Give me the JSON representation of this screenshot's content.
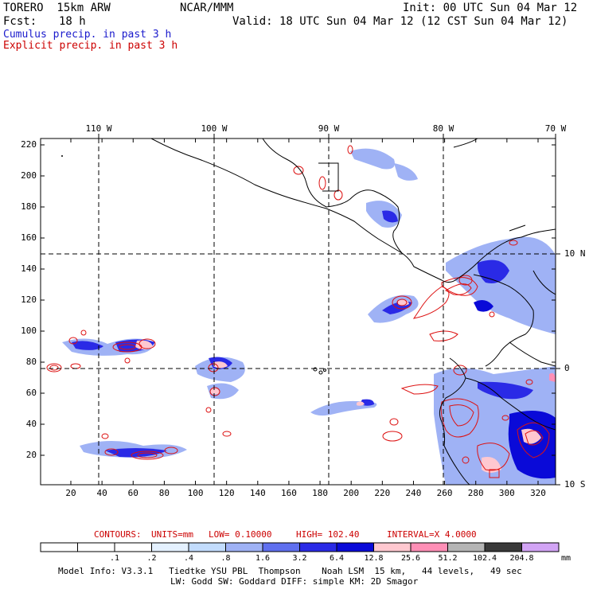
{
  "header": {
    "model": "TORERO  15km ARW",
    "org": "NCAR/MMM",
    "init": "Init: 00 UTC Sun 04 Mar 12",
    "fcst_label": "Fcst:",
    "fcst_value": "18 h",
    "valid": "Valid: 18 UTC Sun 04 Mar 12 (12 CST Sun 04 Mar 12)"
  },
  "legend": {
    "cumulus": "Cumulus precip. in past 3 h",
    "explicit": "Explicit precip. in past 3 h",
    "cumulus_color": "#1a1acc",
    "explicit_color": "#cc0000"
  },
  "axes": {
    "top_lon_labels": [
      "110 W",
      "100 W",
      "90 W",
      "80 W",
      "70 W"
    ],
    "right_lat_labels": [
      "10 N",
      "0",
      "10 S"
    ],
    "y_ticks": [
      "220",
      "200",
      "180",
      "160",
      "140",
      "120",
      "100",
      "80",
      "60",
      "40",
      "20"
    ],
    "x_ticks": [
      "20",
      "40",
      "60",
      "80",
      "100",
      "120",
      "140",
      "160",
      "180",
      "200",
      "220",
      "240",
      "260",
      "280",
      "300",
      "320"
    ]
  },
  "contours_info": {
    "contours": "CONTOURS:",
    "units": "UNITS=mm",
    "low": "LOW= 0.10000",
    "high": "HIGH= 102.40",
    "interval": "INTERVAL=X 4.0000"
  },
  "colorbar": {
    "labels": [
      ".1",
      ".2",
      ".4",
      ".8",
      "1.6",
      "3.2",
      "6.4",
      "12.8",
      "25.6",
      "51.2",
      "102.4",
      "204.8"
    ],
    "unit": "mm",
    "colors": [
      "#ffffff",
      "#ffffff",
      "#ffffff",
      "#e4f1ff",
      "#c2dcfd",
      "#9fb2f5",
      "#6070ef",
      "#2a2ae6",
      "#0a0ad8",
      "#ffc8d0",
      "#ff8fb6",
      "#b5b5b5",
      "#3a3a3a",
      "#d2a4f5"
    ]
  },
  "footer": {
    "line1": "Model Info: V3.3.1   Tiedtke YSU PBL  Thompson    Noah LSM  15 km,   44 levels,   49 sec",
    "line2": "LW: Godd SW: Goddard DIFF: simple KM: 2D Smagor"
  }
}
